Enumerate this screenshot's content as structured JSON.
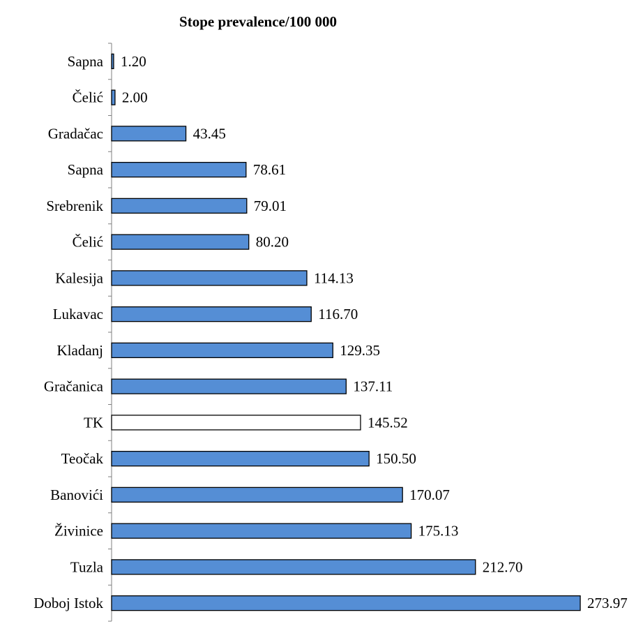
{
  "chart_data": {
    "type": "bar",
    "orientation": "horizontal",
    "title": "Stope prevalence/100 000",
    "xlabel": "",
    "ylabel": "",
    "categories": [
      "Sapna",
      "Čelić",
      "Gradačac",
      "Sapna",
      "Srebrenik",
      "Čelić",
      "Kalesija",
      "Lukavac",
      "Kladanj",
      "Gračanica",
      "TK",
      "Teočak",
      "Banovići",
      "Živinice",
      "Tuzla",
      "Doboj Istok"
    ],
    "values": [
      1.2,
      2.0,
      43.45,
      78.61,
      79.01,
      80.2,
      114.13,
      116.7,
      129.35,
      137.11,
      145.52,
      150.5,
      170.07,
      175.13,
      212.7,
      273.97
    ],
    "value_labels": [
      "1.20",
      "2.00",
      "43.45",
      "78.61",
      "79.01",
      "80.20",
      "114.13",
      "116.70",
      "129.35",
      "137.11",
      "145.52",
      "150.50",
      "170.07",
      "175.13",
      "212.70",
      "273.97"
    ],
    "highlighted_category_index": 10,
    "xlim": [
      0,
      280
    ],
    "grid": false,
    "legend": "none",
    "colors": {
      "bar": "#558ED5",
      "highlight_bar": "#FFFFFF",
      "bar_stroke": "#000000",
      "axis": "#7F7F7F"
    }
  }
}
